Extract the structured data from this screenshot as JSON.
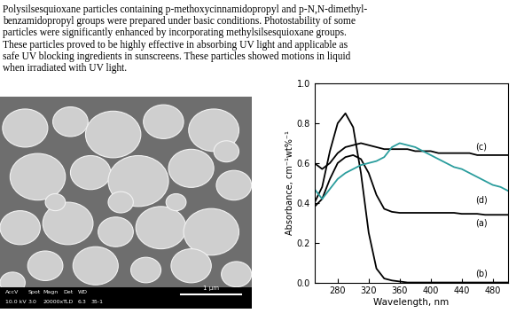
{
  "text": {
    "lines": [
      "Polysilsesquioxane particles containing p-methoxycinnamidopropyl and p-N,N-dimethyl-",
      "benzamidopropyl groups were prepared under basic conditions. Photostability of some",
      "particles were significantly enhanced by incorporating methylsilsesquioxane groups.",
      "These particles proved to be highly effective in absorbing UV light and applicable as",
      "safe UV blocking ingredients in sunscreens. These particles showed motions in liquid",
      "when irradiated with UV light."
    ]
  },
  "image": {
    "info_headers": [
      "AccV",
      "Spot",
      "Magn",
      "Det",
      "WD"
    ],
    "info_values": [
      "10.0 kV",
      "3.0",
      "20000x",
      "TLD",
      "6.3",
      "35-1"
    ],
    "scale_bar": "1 μm"
  },
  "chart_data": {
    "type": "line",
    "x_label": "Wavelength, nm",
    "y_label": "Absorbance, cm⁻¹wt%⁻¹",
    "xlim": [
      250,
      500
    ],
    "xticks": [
      280,
      320,
      360,
      400,
      440,
      480
    ],
    "ylim": [
      0.0,
      1.0
    ],
    "yticks": [
      0.0,
      0.2,
      0.4,
      0.6,
      0.8,
      1.0
    ],
    "x": [
      250,
      260,
      270,
      280,
      290,
      300,
      310,
      320,
      330,
      340,
      350,
      360,
      370,
      380,
      390,
      400,
      410,
      420,
      430,
      440,
      450,
      460,
      470,
      480,
      490,
      500
    ],
    "series": [
      {
        "name": "(a)",
        "color": "#000000",
        "values": [
          0.38,
          0.42,
          0.52,
          0.6,
          0.63,
          0.64,
          0.62,
          0.55,
          0.44,
          0.37,
          0.355,
          0.35,
          0.35,
          0.35,
          0.35,
          0.35,
          0.35,
          0.35,
          0.35,
          0.345,
          0.345,
          0.345,
          0.34,
          0.34,
          0.34,
          0.34
        ]
      },
      {
        "name": "(b)",
        "color": "#000000",
        "values": [
          0.4,
          0.48,
          0.66,
          0.8,
          0.85,
          0.78,
          0.55,
          0.25,
          0.07,
          0.02,
          0.01,
          0.005,
          0.0,
          0.0,
          0.0,
          0.0,
          0.0,
          0.0,
          0.0,
          0.0,
          0.0,
          0.0,
          0.0,
          0.0,
          0.0,
          0.0
        ]
      },
      {
        "name": "(c)",
        "color": "#000000",
        "values": [
          0.6,
          0.57,
          0.6,
          0.65,
          0.68,
          0.69,
          0.7,
          0.69,
          0.68,
          0.67,
          0.67,
          0.67,
          0.67,
          0.66,
          0.66,
          0.66,
          0.65,
          0.65,
          0.65,
          0.65,
          0.65,
          0.64,
          0.64,
          0.64,
          0.64,
          0.64
        ]
      },
      {
        "name": "(d)",
        "color": "#2a9d9d",
        "values": [
          0.47,
          0.42,
          0.47,
          0.52,
          0.55,
          0.57,
          0.59,
          0.6,
          0.61,
          0.63,
          0.68,
          0.7,
          0.69,
          0.68,
          0.66,
          0.64,
          0.62,
          0.6,
          0.58,
          0.57,
          0.55,
          0.53,
          0.51,
          0.49,
          0.48,
          0.46
        ]
      }
    ]
  }
}
